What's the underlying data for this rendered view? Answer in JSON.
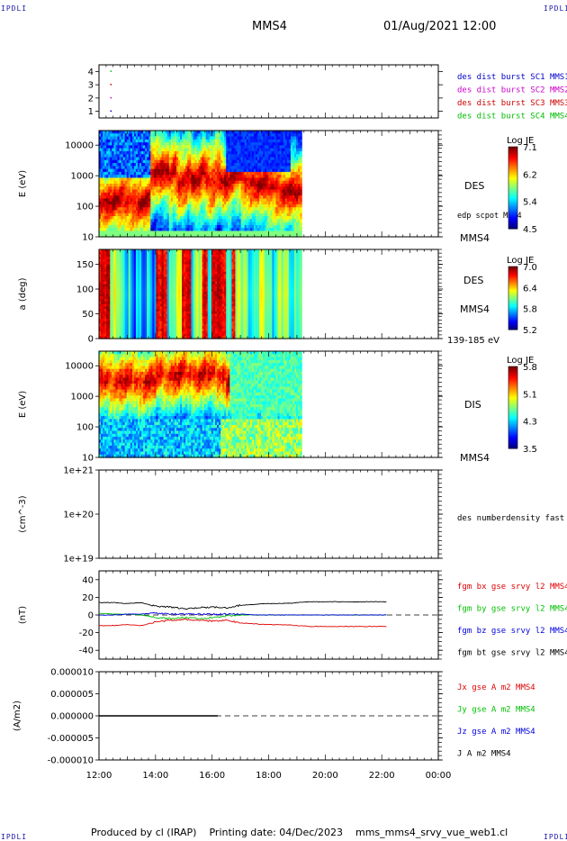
{
  "corners": {
    "tl": "IPDLI",
    "tr": "IPDLI",
    "bl": "IPDLI",
    "br": "IPDLI"
  },
  "header": {
    "spacecraft": "MMS4",
    "datetime": "01/Aug/2021 12:00"
  },
  "footer": {
    "produced_by": "Produced by cl (IRAP)",
    "printing_date": "Printing date: 04/Dec/2023",
    "script": "mms_mms4_srvy_vue_web1.cl"
  },
  "chart_data": [
    {
      "panel": "burst",
      "type": "scatter",
      "xlabel": "",
      "ylabel": "",
      "yticks": [
        "1",
        "2",
        "3",
        "4"
      ],
      "ylim": [
        0.5,
        4.5
      ],
      "legend": [
        {
          "name": "des dist burst SC1 MMS1",
          "color": "#0000cc"
        },
        {
          "name": "des dist burst SC2 MMS2",
          "color": "#cc00cc"
        },
        {
          "name": "des dist burst SC3 MMS3",
          "color": "#cc0000"
        },
        {
          "name": "des dist burst SC4 MMS4",
          "color": "#00bb00"
        }
      ]
    },
    {
      "panel": "des_energy",
      "type": "heatmap",
      "ylabel": "E (eV)",
      "yscale": "log",
      "ylim": [
        10,
        30000
      ],
      "yticks": [
        "10",
        "100",
        "1000",
        "10000"
      ],
      "x_end": "19:10",
      "label": "DES",
      "overlay": "edp scpot MMS4",
      "sc": "MMS4",
      "colorbar": {
        "title": "Log JE",
        "ticks": [
          "7.1",
          "6.2",
          "5.4",
          "4.5"
        ],
        "range": [
          4.5,
          7.1
        ]
      }
    },
    {
      "panel": "des_pitch",
      "type": "heatmap",
      "ylabel": "a (deg)",
      "ylim": [
        0,
        180
      ],
      "yticks": [
        "0",
        "50",
        "100",
        "150"
      ],
      "x_end": "19:10",
      "label": "DES",
      "sc": "MMS4",
      "energy_range": "139-185 eV",
      "colorbar": {
        "title": "Log JE",
        "ticks": [
          "7.0",
          "6.4",
          "5.8",
          "5.2"
        ],
        "range": [
          5.2,
          7.0
        ]
      }
    },
    {
      "panel": "dis_energy",
      "type": "heatmap",
      "ylabel": "E (eV)",
      "yscale": "log",
      "ylim": [
        10,
        30000
      ],
      "yticks": [
        "10",
        "100",
        "1000",
        "10000"
      ],
      "x_end": "19:10",
      "label": "DIS",
      "sc": "MMS4",
      "colorbar": {
        "title": "Log JE",
        "ticks": [
          "5.8",
          "5.1",
          "4.3",
          "3.5"
        ],
        "range": [
          3.5,
          5.8
        ]
      }
    },
    {
      "panel": "density",
      "type": "line",
      "ylabel": "(cm^-3)",
      "yscale": "log",
      "ylim": [
        1e+19,
        1e+21
      ],
      "yticks": [
        "1e+21",
        "1e+20",
        "1e+19"
      ],
      "legend": [
        {
          "name": "des numberdensity fast M",
          "color": "#000000"
        }
      ]
    },
    {
      "panel": "fgm",
      "type": "line",
      "ylabel": "(nT)",
      "ylim": [
        -50,
        50
      ],
      "yticks": [
        "40",
        "20",
        "0",
        "-20",
        "-40"
      ],
      "x": [
        "12:00",
        "12:30",
        "13:00",
        "13:30",
        "14:00",
        "14:30",
        "15:00",
        "15:30",
        "16:00",
        "16:30",
        "17:00",
        "17:30",
        "18:00",
        "18:30",
        "19:00",
        "19:30",
        "20:00",
        "20:30",
        "21:00",
        "21:30",
        "22:00",
        "22:10"
      ],
      "series": [
        {
          "name": "fgm bx gse srvy l2 MMS4",
          "color": "#e00000",
          "values": [
            -12,
            -12,
            -11,
            -12,
            -8,
            -6,
            -5,
            -6,
            -7,
            -6,
            -9,
            -10,
            -11,
            -11,
            -12,
            -13,
            -13,
            -13,
            -13,
            -13,
            -13,
            -13
          ]
        },
        {
          "name": "fgm by gse srvy l2 MMS4",
          "color": "#00c000",
          "values": [
            2,
            1,
            1,
            0,
            -3,
            -4,
            -3,
            -4,
            -3,
            -1,
            0,
            0,
            0,
            0,
            0,
            0,
            0,
            0,
            0,
            0,
            0,
            0
          ]
        },
        {
          "name": "fgm bz gse srvy l2 MMS4",
          "color": "#0000e0",
          "values": [
            0,
            0,
            1,
            1,
            2,
            1,
            1,
            1,
            1,
            1,
            1,
            0,
            0,
            0,
            0,
            0,
            0,
            0,
            0,
            0,
            0,
            0
          ]
        },
        {
          "name": "fgm bt gse srvy l2 MMS4",
          "color": "#000000",
          "values": [
            14,
            14,
            13,
            14,
            10,
            9,
            7,
            8,
            9,
            8,
            11,
            12,
            13,
            13,
            14,
            15,
            15,
            15,
            15,
            15,
            15,
            15
          ]
        }
      ]
    },
    {
      "panel": "current",
      "type": "line",
      "ylabel": "(A/m2)",
      "ylim": [
        -1e-05,
        1e-05
      ],
      "yticks": [
        "0.000010",
        "0.000005",
        "0.000000",
        "-0.000005",
        "-0.000010"
      ],
      "xticks": [
        "12:00",
        "14:00",
        "16:00",
        "18:00",
        "20:00",
        "22:00",
        "00:00"
      ],
      "legend": [
        {
          "name": "Jx gse A m2 MMS4",
          "color": "#e00000"
        },
        {
          "name": "Jy gse A m2 MMS4",
          "color": "#00c000"
        },
        {
          "name": "Jz gse A m2 MMS4",
          "color": "#0000e0"
        },
        {
          "name": "J A m2 MMS4",
          "color": "#000000"
        }
      ]
    }
  ]
}
